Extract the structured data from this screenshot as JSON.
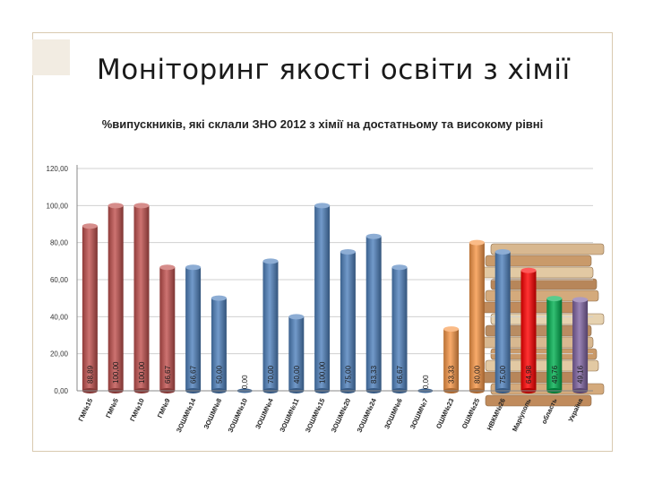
{
  "slide": {
    "title": "Моніторинг якості освіти з хімії"
  },
  "chart_data": {
    "type": "bar",
    "title": "%випускників, які склали ЗНО 2012 з хімії на достатньому та високому рівні",
    "ylim": [
      0,
      120
    ],
    "yticks": [
      "0,00",
      "20,00",
      "40,00",
      "60,00",
      "80,00",
      "100,00",
      "120,00"
    ],
    "grid": true,
    "categories": [
      "ГМ№15",
      "ГМ№5",
      "ГМ№10",
      "ГМ№9",
      "ЗОШМ№14",
      "ЗОШМ№8",
      "ЗОШМ№10",
      "ЗОШМ№4",
      "ЗОШМ№11",
      "ЗОШМ№15",
      "ЗОШМ№20",
      "ЗОШМ№24",
      "ЗОШМ№6",
      "ЗОШМ№7",
      "ОШМ№23",
      "ОШМ№25",
      "НВКМ№26",
      "Маріуполь",
      "область",
      "Україна"
    ],
    "values": [
      88.89,
      100.0,
      100.0,
      66.67,
      66.67,
      50.0,
      0.0,
      70.0,
      40.0,
      100.0,
      75.0,
      83.33,
      66.67,
      0.0,
      33.33,
      80.0,
      75.0,
      64.98,
      49.76,
      49.16
    ],
    "value_labels": [
      "88,89",
      "100,00",
      "100,00",
      "66,67",
      "66,67",
      "50,00",
      "0,00",
      "70,00",
      "40,00",
      "100,00",
      "75,00",
      "83,33",
      "66,67",
      "0,00",
      "33,33",
      "80,00",
      "75,00",
      "64,98",
      "49,76",
      "49,16"
    ],
    "colors": [
      "#c0504d",
      "#c0504d",
      "#c0504d",
      "#c0504d",
      "#4f81bd",
      "#4f81bd",
      "#4f81bd",
      "#4f81bd",
      "#4f81bd",
      "#4f81bd",
      "#4f81bd",
      "#4f81bd",
      "#4f81bd",
      "#4f81bd",
      "#f79646",
      "#f79646",
      "#4f81bd",
      "#ff0000",
      "#00b050",
      "#8064a2"
    ]
  }
}
